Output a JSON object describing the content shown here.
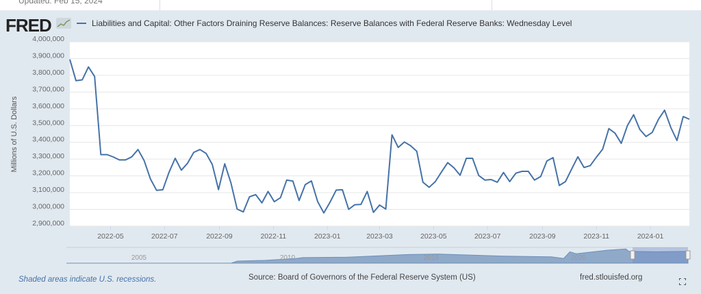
{
  "page": {
    "updated": "Updated: Feb 15, 2024",
    "logo_text": "FRED",
    "logo_icon": "chart-line-icon",
    "footer_note": "Shaded areas indicate U.S. recessions.",
    "source": "Source: Board of Governors of the Federal Reserve System (US)",
    "site": "fred.stlouisfed.org",
    "fullscreen_icon": "expand-icon"
  },
  "colors": {
    "line": "#4572a7",
    "background": "#e1e9f0",
    "plot": "#ffffff",
    "navigator_fill": "#8fa9c9"
  },
  "navigator": {
    "labels": [
      "2005",
      "2010",
      "2015",
      "2020"
    ],
    "selected_range": [
      "2022-03-16",
      "2024-02-14"
    ]
  },
  "chart_data": {
    "type": "line",
    "title": "",
    "ylabel": "Millions of U.S. Dollars",
    "xlabel": "",
    "legend_position": "top-left",
    "grid": true,
    "ylim": [
      2900000,
      4000000
    ],
    "xlim": [
      "2022-03-16",
      "2024-02-14"
    ],
    "yticks": [
      "2,900,000",
      "3,000,000",
      "3,100,000",
      "3,200,000",
      "3,300,000",
      "3,400,000",
      "3,500,000",
      "3,600,000",
      "3,700,000",
      "3,800,000",
      "3,900,000",
      "4,000,000"
    ],
    "xticks": [
      "2022-05",
      "2022-07",
      "2022-09",
      "2022-11",
      "2023-01",
      "2023-03",
      "2023-05",
      "2023-07",
      "2023-09",
      "2023-11",
      "2024-01"
    ],
    "start_date": "2022-03-16",
    "frequency": "weekly, Wednesday",
    "series": [
      {
        "name": "Liabilities and Capital: Other Factors Draining Reserve Balances: Reserve Balances with Federal Reserve Banks: Wednesday Level",
        "values": [
          3895000,
          3768000,
          3773000,
          3850000,
          3793000,
          3327000,
          3327000,
          3313000,
          3295000,
          3295000,
          3314000,
          3357000,
          3291000,
          3182000,
          3114000,
          3117000,
          3220000,
          3305000,
          3234000,
          3275000,
          3340000,
          3357000,
          3334000,
          3268000,
          3118000,
          3272000,
          3159000,
          3002000,
          2985000,
          3075000,
          3088000,
          3039000,
          3107000,
          3046000,
          3070000,
          3175000,
          3169000,
          3053000,
          3148000,
          3170000,
          3047000,
          2979000,
          3043000,
          3115000,
          3117000,
          3000000,
          3028000,
          3030000,
          3107000,
          2982000,
          3026000,
          3002000,
          3445000,
          3370000,
          3402000,
          3380000,
          3347000,
          3162000,
          3132000,
          3166000,
          3224000,
          3279000,
          3248000,
          3204000,
          3305000,
          3305000,
          3202000,
          3175000,
          3178000,
          3162000,
          3220000,
          3166000,
          3216000,
          3227000,
          3227000,
          3175000,
          3196000,
          3289000,
          3309000,
          3143000,
          3166000,
          3241000,
          3314000,
          3250000,
          3261000,
          3312000,
          3359000,
          3482000,
          3455000,
          3394000,
          3500000,
          3565000,
          3477000,
          3435000,
          3459000,
          3537000,
          3592000,
          3489000,
          3411000,
          3554000,
          3538000
        ]
      }
    ]
  }
}
